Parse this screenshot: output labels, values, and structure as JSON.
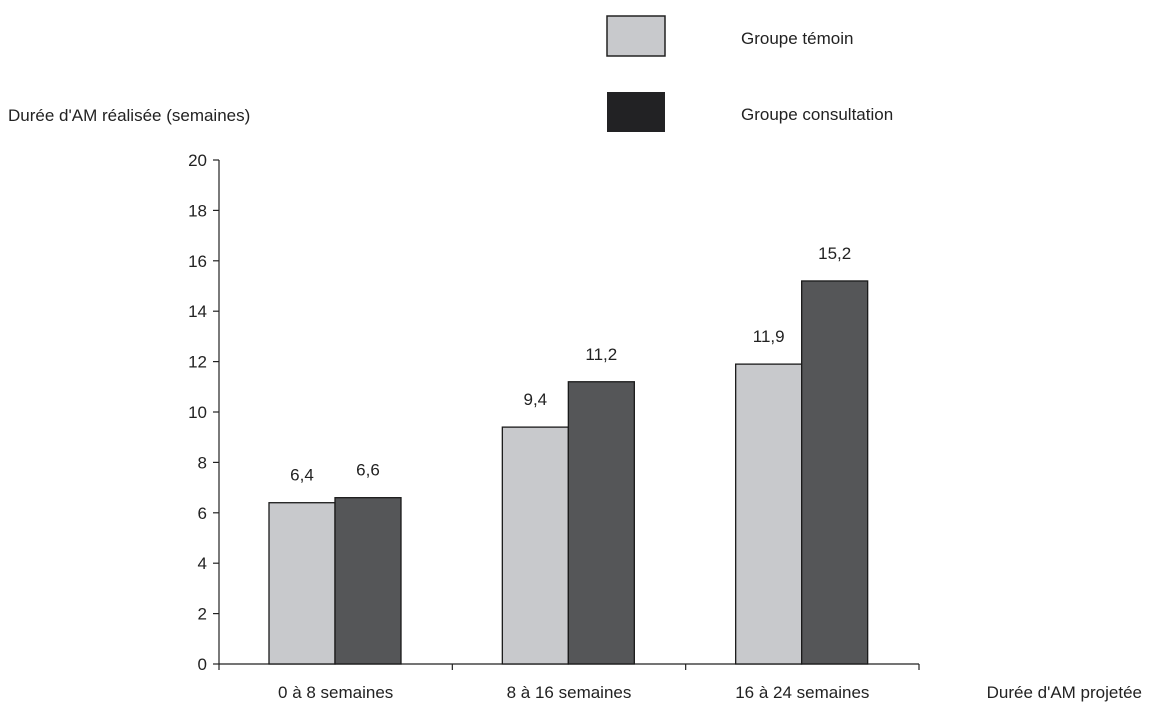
{
  "chart_data": {
    "type": "bar",
    "ylabel": "Durée d'AM réalisée (semaines)",
    "xlabel": "Durée d'AM projetée",
    "categories": [
      "0 à 8 semaines",
      "8 à 16 semaines",
      "16 à 24 semaines"
    ],
    "series": [
      {
        "name": "Groupe témoin",
        "values": [
          6.4,
          9.4,
          11.9
        ],
        "labels": [
          "6,4",
          "9,4",
          "11,9"
        ],
        "color": "#c8c9cc"
      },
      {
        "name": "Groupe consultation",
        "values": [
          6.6,
          11.2,
          15.2
        ],
        "labels": [
          "6,6",
          "11,2",
          "15,2"
        ],
        "color": "#555658"
      }
    ],
    "ylim": [
      0,
      20
    ],
    "yticks": [
      0,
      2,
      4,
      6,
      8,
      10,
      12,
      14,
      16,
      18,
      20
    ],
    "grid": false,
    "legend": {
      "placement": "top-center",
      "entries": [
        {
          "name": "Groupe témoin",
          "color": "#c8c9cc"
        },
        {
          "name": "Groupe consultation",
          "color": "#222224"
        }
      ]
    }
  }
}
